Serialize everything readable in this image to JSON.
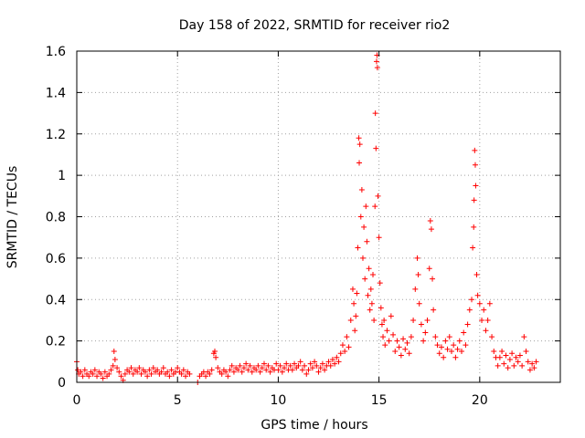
{
  "chart_data": {
    "type": "scatter",
    "title": "Day 158 of 2022, SRMTID for receiver rio2",
    "xlabel": "GPS time / hours",
    "ylabel": "SRMTID / TECUs",
    "xlim": [
      0,
      24
    ],
    "ylim": [
      0,
      1.6
    ],
    "x_ticks": [
      0,
      5,
      10,
      15,
      20
    ],
    "x_tick_labels": [
      "0",
      "5",
      "10",
      "15",
      "20"
    ],
    "y_ticks": [
      0,
      0.2,
      0.4,
      0.6,
      0.8,
      1.0,
      1.2,
      1.4,
      1.6
    ],
    "y_tick_labels": [
      "0",
      "0.2",
      "0.4",
      "0.6",
      "0.8",
      "1",
      "1.2",
      "1.4",
      "1.6"
    ],
    "grid": true,
    "marker": "+",
    "color": "#ff0000",
    "series": [
      {
        "name": "SRMTID",
        "points": [
          [
            0.0,
            0.1
          ],
          [
            0.05,
            0.06
          ],
          [
            0.1,
            0.04
          ],
          [
            0.2,
            0.05
          ],
          [
            0.3,
            0.03
          ],
          [
            0.4,
            0.06
          ],
          [
            0.5,
            0.04
          ],
          [
            0.6,
            0.03
          ],
          [
            0.7,
            0.05
          ],
          [
            0.8,
            0.04
          ],
          [
            0.9,
            0.06
          ],
          [
            1.0,
            0.03
          ],
          [
            1.1,
            0.05
          ],
          [
            1.2,
            0.04
          ],
          [
            1.3,
            0.02
          ],
          [
            1.4,
            0.05
          ],
          [
            1.5,
            0.03
          ],
          [
            1.6,
            0.04
          ],
          [
            1.7,
            0.06
          ],
          [
            1.8,
            0.08
          ],
          [
            1.85,
            0.15
          ],
          [
            1.9,
            0.11
          ],
          [
            2.0,
            0.07
          ],
          [
            2.1,
            0.05
          ],
          [
            2.2,
            0.03
          ],
          [
            2.3,
            0.01
          ],
          [
            2.4,
            0.04
          ],
          [
            2.5,
            0.06
          ],
          [
            2.6,
            0.05
          ],
          [
            2.7,
            0.07
          ],
          [
            2.8,
            0.04
          ],
          [
            2.9,
            0.06
          ],
          [
            3.0,
            0.05
          ],
          [
            3.1,
            0.07
          ],
          [
            3.2,
            0.04
          ],
          [
            3.3,
            0.06
          ],
          [
            3.4,
            0.05
          ],
          [
            3.5,
            0.03
          ],
          [
            3.6,
            0.06
          ],
          [
            3.7,
            0.04
          ],
          [
            3.8,
            0.07
          ],
          [
            3.9,
            0.05
          ],
          [
            4.0,
            0.06
          ],
          [
            4.1,
            0.04
          ],
          [
            4.2,
            0.05
          ],
          [
            4.3,
            0.07
          ],
          [
            4.4,
            0.04
          ],
          [
            4.5,
            0.05
          ],
          [
            4.6,
            0.03
          ],
          [
            4.7,
            0.06
          ],
          [
            4.8,
            0.04
          ],
          [
            4.9,
            0.05
          ],
          [
            5.0,
            0.07
          ],
          [
            5.1,
            0.05
          ],
          [
            5.2,
            0.04
          ],
          [
            5.3,
            0.06
          ],
          [
            5.4,
            0.03
          ],
          [
            5.5,
            0.05
          ],
          [
            5.6,
            0.04
          ],
          [
            6.0,
            0.0
          ],
          [
            6.1,
            0.03
          ],
          [
            6.2,
            0.04
          ],
          [
            6.3,
            0.05
          ],
          [
            6.4,
            0.03
          ],
          [
            6.5,
            0.05
          ],
          [
            6.6,
            0.04
          ],
          [
            6.7,
            0.06
          ],
          [
            6.8,
            0.14
          ],
          [
            6.85,
            0.15
          ],
          [
            6.9,
            0.12
          ],
          [
            7.0,
            0.07
          ],
          [
            7.1,
            0.05
          ],
          [
            7.2,
            0.04
          ],
          [
            7.3,
            0.06
          ],
          [
            7.4,
            0.05
          ],
          [
            7.5,
            0.03
          ],
          [
            7.6,
            0.06
          ],
          [
            7.7,
            0.08
          ],
          [
            7.8,
            0.05
          ],
          [
            7.9,
            0.07
          ],
          [
            8.0,
            0.06
          ],
          [
            8.1,
            0.08
          ],
          [
            8.2,
            0.05
          ],
          [
            8.3,
            0.07
          ],
          [
            8.4,
            0.09
          ],
          [
            8.5,
            0.06
          ],
          [
            8.6,
            0.08
          ],
          [
            8.7,
            0.05
          ],
          [
            8.8,
            0.07
          ],
          [
            8.9,
            0.06
          ],
          [
            9.0,
            0.08
          ],
          [
            9.1,
            0.05
          ],
          [
            9.2,
            0.07
          ],
          [
            9.3,
            0.09
          ],
          [
            9.4,
            0.06
          ],
          [
            9.5,
            0.08
          ],
          [
            9.6,
            0.05
          ],
          [
            9.7,
            0.07
          ],
          [
            9.8,
            0.06
          ],
          [
            9.9,
            0.09
          ],
          [
            10.0,
            0.06
          ],
          [
            10.1,
            0.08
          ],
          [
            10.2,
            0.05
          ],
          [
            10.3,
            0.07
          ],
          [
            10.4,
            0.09
          ],
          [
            10.5,
            0.06
          ],
          [
            10.6,
            0.08
          ],
          [
            10.7,
            0.06
          ],
          [
            10.8,
            0.09
          ],
          [
            10.9,
            0.07
          ],
          [
            11.0,
            0.08
          ],
          [
            11.1,
            0.1
          ],
          [
            11.2,
            0.06
          ],
          [
            11.3,
            0.08
          ],
          [
            11.4,
            0.04
          ],
          [
            11.5,
            0.06
          ],
          [
            11.6,
            0.09
          ],
          [
            11.7,
            0.07
          ],
          [
            11.8,
            0.1
          ],
          [
            11.9,
            0.08
          ],
          [
            12.0,
            0.05
          ],
          [
            12.1,
            0.07
          ],
          [
            12.2,
            0.09
          ],
          [
            12.3,
            0.06
          ],
          [
            12.4,
            0.08
          ],
          [
            12.5,
            0.1
          ],
          [
            12.6,
            0.08
          ],
          [
            12.7,
            0.11
          ],
          [
            12.8,
            0.09
          ],
          [
            12.9,
            0.12
          ],
          [
            13.0,
            0.1
          ],
          [
            13.1,
            0.14
          ],
          [
            13.2,
            0.18
          ],
          [
            13.3,
            0.15
          ],
          [
            13.4,
            0.22
          ],
          [
            13.5,
            0.17
          ],
          [
            13.6,
            0.3
          ],
          [
            13.7,
            0.45
          ],
          [
            13.75,
            0.38
          ],
          [
            13.8,
            0.25
          ],
          [
            13.85,
            0.32
          ],
          [
            13.9,
            0.43
          ],
          [
            13.95,
            0.65
          ],
          [
            14.0,
            1.18
          ],
          [
            14.02,
            1.06
          ],
          [
            14.05,
            1.15
          ],
          [
            14.1,
            0.8
          ],
          [
            14.15,
            0.93
          ],
          [
            14.2,
            0.6
          ],
          [
            14.25,
            0.75
          ],
          [
            14.3,
            0.5
          ],
          [
            14.35,
            0.85
          ],
          [
            14.4,
            0.68
          ],
          [
            14.45,
            0.42
          ],
          [
            14.5,
            0.55
          ],
          [
            14.55,
            0.35
          ],
          [
            14.6,
            0.45
          ],
          [
            14.65,
            0.38
          ],
          [
            14.7,
            0.52
          ],
          [
            14.75,
            0.3
          ],
          [
            14.8,
            0.85
          ],
          [
            14.82,
            1.3
          ],
          [
            14.85,
            1.13
          ],
          [
            14.88,
            1.55
          ],
          [
            14.9,
            1.58
          ],
          [
            14.92,
            1.52
          ],
          [
            14.95,
            0.9
          ],
          [
            15.0,
            0.7
          ],
          [
            15.05,
            0.48
          ],
          [
            15.1,
            0.36
          ],
          [
            15.15,
            0.28
          ],
          [
            15.2,
            0.22
          ],
          [
            15.25,
            0.3
          ],
          [
            15.3,
            0.18
          ],
          [
            15.4,
            0.25
          ],
          [
            15.5,
            0.2
          ],
          [
            15.6,
            0.32
          ],
          [
            15.7,
            0.23
          ],
          [
            15.8,
            0.15
          ],
          [
            15.9,
            0.2
          ],
          [
            16.0,
            0.17
          ],
          [
            16.1,
            0.13
          ],
          [
            16.2,
            0.21
          ],
          [
            16.3,
            0.16
          ],
          [
            16.4,
            0.19
          ],
          [
            16.5,
            0.14
          ],
          [
            16.6,
            0.22
          ],
          [
            16.7,
            0.3
          ],
          [
            16.8,
            0.45
          ],
          [
            16.9,
            0.6
          ],
          [
            16.95,
            0.52
          ],
          [
            17.0,
            0.38
          ],
          [
            17.1,
            0.28
          ],
          [
            17.2,
            0.2
          ],
          [
            17.3,
            0.24
          ],
          [
            17.4,
            0.3
          ],
          [
            17.5,
            0.55
          ],
          [
            17.55,
            0.78
          ],
          [
            17.6,
            0.74
          ],
          [
            17.65,
            0.5
          ],
          [
            17.7,
            0.35
          ],
          [
            17.8,
            0.22
          ],
          [
            17.9,
            0.18
          ],
          [
            18.0,
            0.14
          ],
          [
            18.1,
            0.17
          ],
          [
            18.2,
            0.12
          ],
          [
            18.3,
            0.2
          ],
          [
            18.4,
            0.16
          ],
          [
            18.5,
            0.22
          ],
          [
            18.6,
            0.15
          ],
          [
            18.7,
            0.18
          ],
          [
            18.8,
            0.12
          ],
          [
            18.9,
            0.16
          ],
          [
            19.0,
            0.2
          ],
          [
            19.1,
            0.15
          ],
          [
            19.2,
            0.24
          ],
          [
            19.3,
            0.18
          ],
          [
            19.4,
            0.28
          ],
          [
            19.5,
            0.35
          ],
          [
            19.6,
            0.4
          ],
          [
            19.65,
            0.65
          ],
          [
            19.7,
            0.75
          ],
          [
            19.72,
            0.88
          ],
          [
            19.75,
            1.12
          ],
          [
            19.78,
            1.05
          ],
          [
            19.8,
            0.95
          ],
          [
            19.85,
            0.52
          ],
          [
            19.9,
            0.42
          ],
          [
            20.0,
            0.38
          ],
          [
            20.1,
            0.3
          ],
          [
            20.2,
            0.35
          ],
          [
            20.3,
            0.25
          ],
          [
            20.4,
            0.3
          ],
          [
            20.5,
            0.38
          ],
          [
            20.6,
            0.22
          ],
          [
            20.7,
            0.15
          ],
          [
            20.8,
            0.12
          ],
          [
            20.9,
            0.08
          ],
          [
            21.0,
            0.12
          ],
          [
            21.1,
            0.15
          ],
          [
            21.2,
            0.09
          ],
          [
            21.3,
            0.13
          ],
          [
            21.4,
            0.07
          ],
          [
            21.5,
            0.11
          ],
          [
            21.6,
            0.14
          ],
          [
            21.7,
            0.08
          ],
          [
            21.8,
            0.12
          ],
          [
            21.9,
            0.1
          ],
          [
            22.0,
            0.13
          ],
          [
            22.1,
            0.08
          ],
          [
            22.2,
            0.22
          ],
          [
            22.3,
            0.15
          ],
          [
            22.4,
            0.1
          ],
          [
            22.5,
            0.06
          ],
          [
            22.6,
            0.09
          ],
          [
            22.7,
            0.07
          ],
          [
            22.8,
            0.1
          ]
        ]
      }
    ]
  }
}
